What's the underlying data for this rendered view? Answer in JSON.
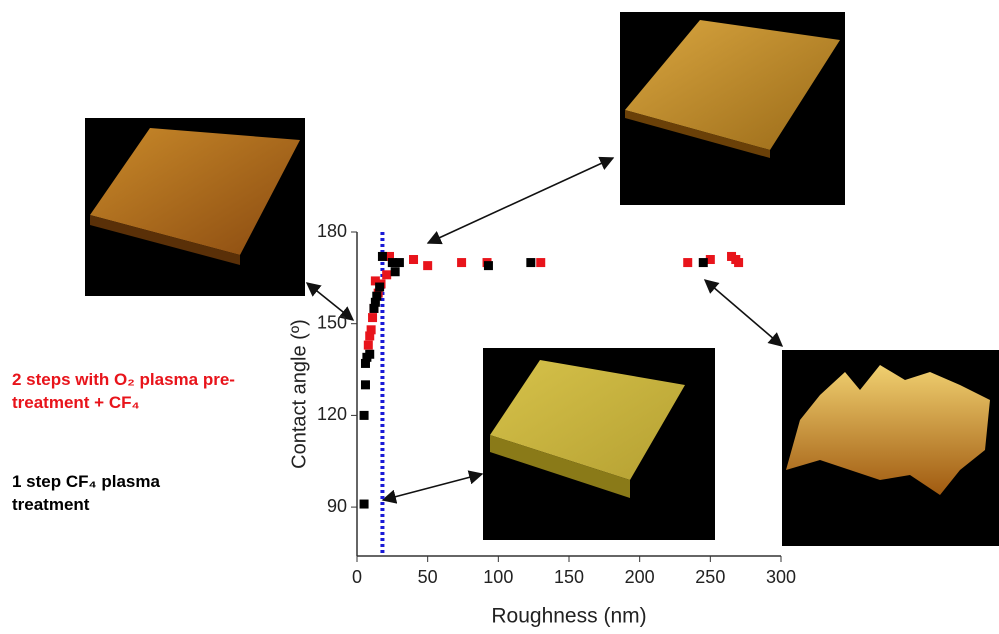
{
  "chart_data": {
    "type": "scatter",
    "x_label": "Roughness (nm)",
    "y_label": "Contact angle (º)",
    "xlim": [
      0,
      300
    ],
    "xticks": [
      0,
      50,
      100,
      150,
      200,
      250,
      300
    ],
    "ylim": [
      74,
      180
    ],
    "yticks": [
      90,
      120,
      150,
      180
    ],
    "reference_line": {
      "x": 18,
      "color": "#1a1ad6"
    },
    "series": [
      {
        "name": "2 steps with O₂ plasma pre-treatment + CF₄",
        "color": "#e8141b",
        "x": [
          8,
          9,
          10,
          11,
          12,
          13,
          15,
          17,
          21,
          23,
          40,
          50,
          74,
          92,
          130,
          234,
          250,
          265,
          268,
          270
        ],
        "values": [
          143,
          146,
          148,
          152,
          155,
          164,
          160,
          163,
          166,
          172,
          171,
          169,
          170,
          170,
          170,
          170,
          171,
          172,
          171,
          170
        ]
      },
      {
        "name": "1 step CF₄ plasma treatment",
        "color": "#000000",
        "x": [
          5,
          5,
          6,
          6,
          7,
          9,
          12,
          13,
          14,
          16,
          18,
          25,
          27,
          30,
          93,
          123,
          245
        ],
        "values": [
          91,
          120,
          130,
          137,
          139,
          140,
          155,
          157,
          159,
          162,
          172,
          170,
          167,
          170,
          169,
          170,
          170
        ]
      }
    ]
  }
}
